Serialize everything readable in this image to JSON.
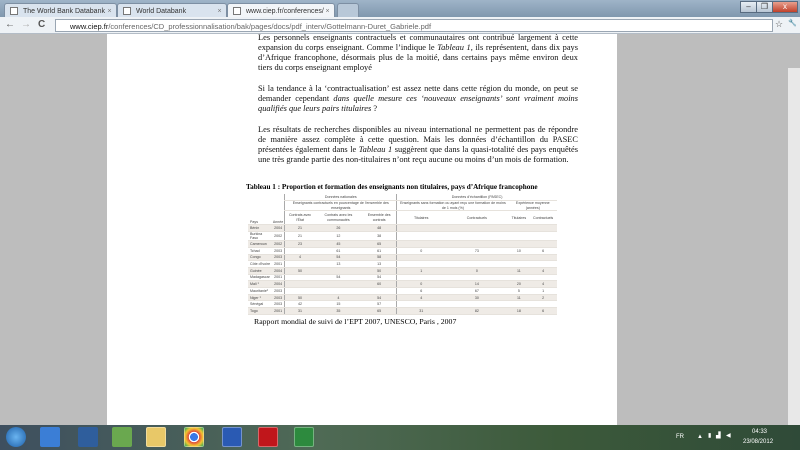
{
  "browser": {
    "tabs": [
      {
        "label": "The World Bank Databank",
        "active": false
      },
      {
        "label": "World Databank",
        "active": false
      },
      {
        "label": "www.ciep.fr/conferences/C",
        "active": true
      }
    ],
    "url_host": "www.ciep.fr",
    "url_path": "/conferences/CD_professionnalisation/bak/pages/docs/pdf_interv/Gottelmann-Duret_Gabriele.pdf",
    "window_controls": {
      "minimize": "–",
      "restore": "❐",
      "close": "x"
    },
    "back": "←",
    "forward": "→",
    "reload": "C",
    "star": "☆",
    "wrench": "🔧"
  },
  "document": {
    "para1": "Les personnels enseignants contractuels et communautaires ont contribué largement à cette expansion du corps enseignant. Comme l’indique le ",
    "para1_ref": "Tableau 1",
    "para1_end": ", ils représentent, dans dix pays d’Afrique francophone, désormais plus de la moitié, dans certains pays même environ deux tiers du corps enseignant employé",
    "para2": "Si la tendance à la ‘contractualisation’ est assez nette dans cette région du monde, on peut se demander cependant ",
    "para2_italic": "dans quelle mesure ces ‘nouveaux enseignants’ sont vraiment moins qualifiés que leurs pairs titulaires",
    "para2_end": " ?",
    "para3": "Les résultats de recherches disponibles au niveau international ne permettent pas de répondre de manière assez complète à cette question. Mais les données d’échantillon du PASEC présentées également dans le ",
    "para3_ref": "Tableau 1",
    "para3_end": " suggèrent que dans la quasi-totalité des pays enquêtés une très grande partie des non-titulaires n’ont reçu aucune ou moins d’un mois de formation.",
    "caption": "Tableau 1 : Proportion et formation des enseignants non titulaires, pays d’Afrique francophone",
    "source": "Rapport mondial de suivi de l’EPT 2007, UNESCO, Paris , 2007",
    "table": {
      "group_national": "Données nationales",
      "group_pasec": "Données d’échantillon (PASEC)",
      "sub_national": "Enseignants contractuels en pourcentage de l’ensemble des enseignants",
      "sub_training": "Enseignants sans formation ou ayant reçu une formation de moins de 1 mois (%)",
      "sub_experience": "Expérience moyenne (années)",
      "headers": [
        "Pays",
        "Année",
        "Contrats avec l’État",
        "Contrats avec les communautés",
        "Ensemble des contrats",
        "Titulaires",
        "Contractuels",
        "Titulaires",
        "Contractuels"
      ],
      "rows": [
        [
          "Bénin",
          "2004",
          "21",
          "26",
          "48",
          "",
          "",
          "",
          ""
        ],
        [
          "Burkina Faso",
          "2002",
          "21",
          "12",
          "38",
          "",
          "",
          "",
          ""
        ],
        [
          "Cameroun",
          "2002",
          "23",
          "45",
          "65",
          "",
          "",
          "",
          ""
        ],
        [
          "Tchad",
          "2003",
          "",
          "61",
          "61",
          "0",
          "73",
          "10",
          "6"
        ],
        [
          "Congo",
          "2003",
          "4",
          "54",
          "58",
          "",
          "",
          "",
          ""
        ],
        [
          "Côte d’Ivoire",
          "2001",
          "",
          "13",
          "13",
          "",
          "",
          "",
          ""
        ],
        [
          "Guinée",
          "2004",
          "50",
          "",
          "50",
          "1",
          "0",
          "11",
          "4"
        ],
        [
          "Madagascar",
          "2001",
          "",
          "54",
          "54",
          "",
          "",
          "",
          ""
        ],
        [
          "Mali ¹",
          "2004",
          "",
          "",
          "60",
          "0",
          "14",
          "20",
          "4"
        ],
        [
          "Mauritanie²",
          "2003",
          "",
          "",
          "",
          "6",
          "67",
          "5",
          "1"
        ],
        [
          "Niger ¹",
          "2003",
          "50",
          "4",
          "54",
          "4",
          "30",
          "11",
          "2"
        ],
        [
          "Sénégal",
          "2003",
          "42",
          "15",
          "57",
          "",
          "",
          "",
          ""
        ],
        [
          "Togo",
          "2001",
          "31",
          "35",
          "65",
          "31",
          "82",
          "18",
          "6"
        ]
      ]
    }
  },
  "taskbar": {
    "apps": [
      "start-orb",
      "media-player",
      "store",
      "messenger",
      "explorer",
      "chrome",
      "word",
      "acrobat",
      "excel"
    ],
    "language": "FR",
    "time": "04:33",
    "date": "23/08/2012"
  }
}
